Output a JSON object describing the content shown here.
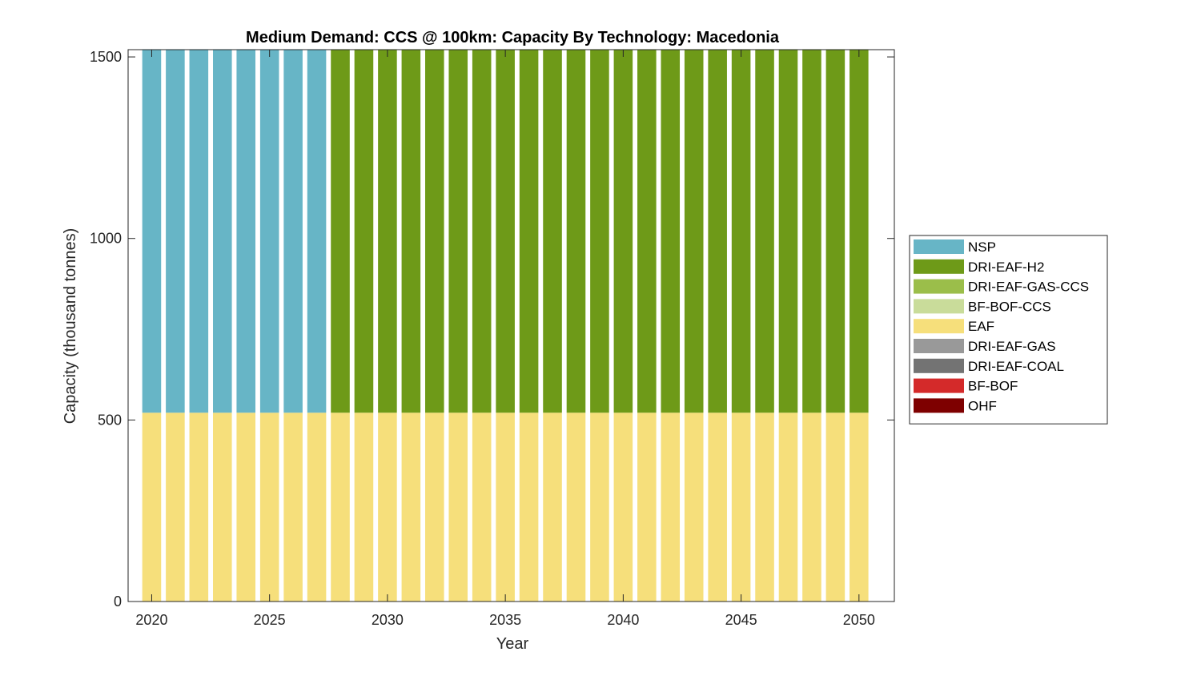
{
  "chart_data": {
    "type": "bar",
    "stacked": true,
    "title": "Medium Demand: CCS @ 100km: Capacity By Technology: Macedonia",
    "xlabel": "Year",
    "ylabel": "Capacity (thousand tonnes)",
    "xlim": [
      2019,
      2051.5
    ],
    "ylim": [
      0,
      1520
    ],
    "xticks": [
      "2020",
      "2025",
      "2030",
      "2035",
      "2040",
      "2045",
      "2050"
    ],
    "yticks": [
      "0",
      "500",
      "1000",
      "1500"
    ],
    "x": [
      2020,
      2021,
      2022,
      2023,
      2024,
      2025,
      2026,
      2027,
      2028,
      2029,
      2030,
      2031,
      2032,
      2033,
      2034,
      2035,
      2036,
      2037,
      2038,
      2039,
      2040,
      2041,
      2042,
      2043,
      2044,
      2045,
      2046,
      2047,
      2048,
      2049,
      2050
    ],
    "legend_position": "outside-right",
    "series": [
      {
        "name": "NSP",
        "color": "#67b5c6",
        "values": [
          1000,
          1000,
          1000,
          1000,
          1000,
          1000,
          1000,
          1000,
          0,
          0,
          0,
          0,
          0,
          0,
          0,
          0,
          0,
          0,
          0,
          0,
          0,
          0,
          0,
          0,
          0,
          0,
          0,
          0,
          0,
          0,
          0
        ]
      },
      {
        "name": "DRI-EAF-H2",
        "color": "#6e9a18",
        "values": [
          0,
          0,
          0,
          0,
          0,
          0,
          0,
          0,
          1000,
          1000,
          1000,
          1000,
          1000,
          1000,
          1000,
          1000,
          1000,
          1000,
          1000,
          1000,
          1000,
          1000,
          1000,
          1000,
          1000,
          1000,
          1000,
          1000,
          1000,
          1000,
          1000
        ]
      },
      {
        "name": "DRI-EAF-GAS-CCS",
        "color": "#9bbe4a",
        "values": [
          0,
          0,
          0,
          0,
          0,
          0,
          0,
          0,
          0,
          0,
          0,
          0,
          0,
          0,
          0,
          0,
          0,
          0,
          0,
          0,
          0,
          0,
          0,
          0,
          0,
          0,
          0,
          0,
          0,
          0,
          0
        ]
      },
      {
        "name": "BF-BOF-CCS",
        "color": "#c9dc9a",
        "values": [
          0,
          0,
          0,
          0,
          0,
          0,
          0,
          0,
          0,
          0,
          0,
          0,
          0,
          0,
          0,
          0,
          0,
          0,
          0,
          0,
          0,
          0,
          0,
          0,
          0,
          0,
          0,
          0,
          0,
          0,
          0
        ]
      },
      {
        "name": "EAF",
        "color": "#f6df7b",
        "values": [
          520,
          520,
          520,
          520,
          520,
          520,
          520,
          520,
          520,
          520,
          520,
          520,
          520,
          520,
          520,
          520,
          520,
          520,
          520,
          520,
          520,
          520,
          520,
          520,
          520,
          520,
          520,
          520,
          520,
          520,
          520
        ]
      },
      {
        "name": "DRI-EAF-GAS",
        "color": "#999999",
        "values": [
          0,
          0,
          0,
          0,
          0,
          0,
          0,
          0,
          0,
          0,
          0,
          0,
          0,
          0,
          0,
          0,
          0,
          0,
          0,
          0,
          0,
          0,
          0,
          0,
          0,
          0,
          0,
          0,
          0,
          0,
          0
        ]
      },
      {
        "name": "DRI-EAF-COAL",
        "color": "#737373",
        "values": [
          0,
          0,
          0,
          0,
          0,
          0,
          0,
          0,
          0,
          0,
          0,
          0,
          0,
          0,
          0,
          0,
          0,
          0,
          0,
          0,
          0,
          0,
          0,
          0,
          0,
          0,
          0,
          0,
          0,
          0,
          0
        ]
      },
      {
        "name": "BF-BOF",
        "color": "#d42a2a",
        "values": [
          0,
          0,
          0,
          0,
          0,
          0,
          0,
          0,
          0,
          0,
          0,
          0,
          0,
          0,
          0,
          0,
          0,
          0,
          0,
          0,
          0,
          0,
          0,
          0,
          0,
          0,
          0,
          0,
          0,
          0,
          0
        ]
      },
      {
        "name": "OHF",
        "color": "#7e0000",
        "values": [
          0,
          0,
          0,
          0,
          0,
          0,
          0,
          0,
          0,
          0,
          0,
          0,
          0,
          0,
          0,
          0,
          0,
          0,
          0,
          0,
          0,
          0,
          0,
          0,
          0,
          0,
          0,
          0,
          0,
          0,
          0
        ]
      }
    ],
    "stack_order": [
      "OHF",
      "BF-BOF",
      "DRI-EAF-COAL",
      "DRI-EAF-GAS",
      "EAF",
      "BF-BOF-CCS",
      "DRI-EAF-GAS-CCS",
      "DRI-EAF-H2",
      "NSP"
    ]
  }
}
